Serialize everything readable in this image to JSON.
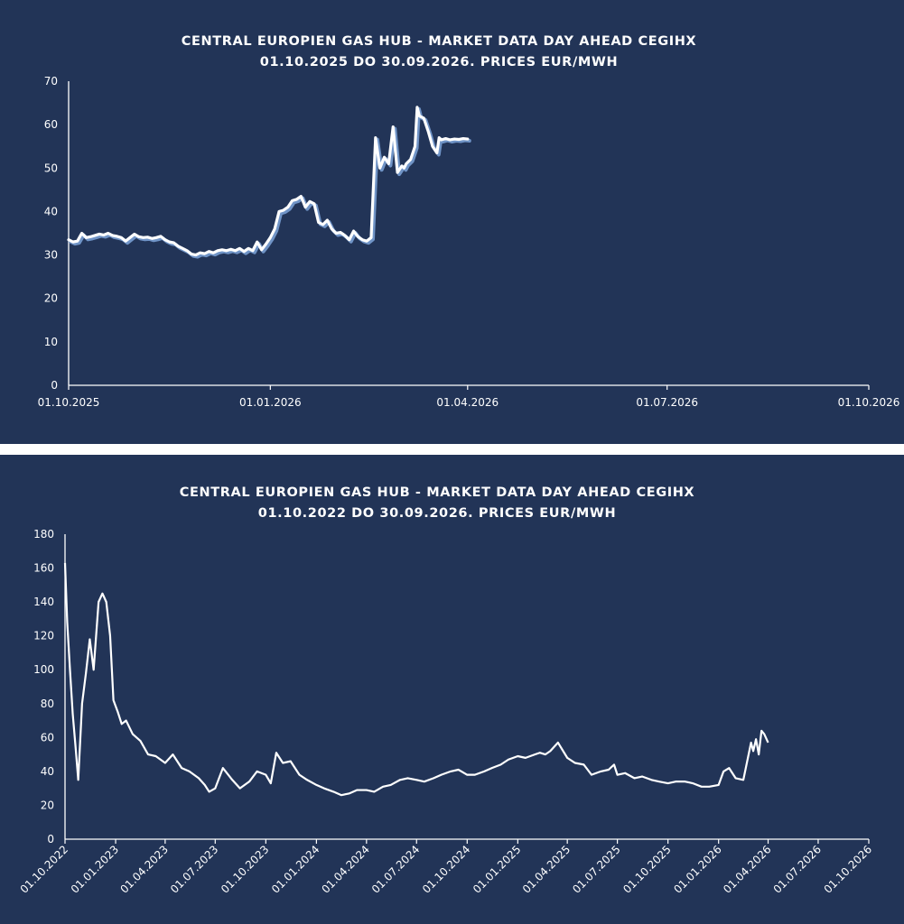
{
  "colors": {
    "background": "#223457",
    "separator": "#ffffff",
    "line": "#ffffff",
    "line_shadow": "#6f93c6"
  },
  "chart_data": [
    {
      "type": "line",
      "title": "CENTRAL EUROPIEN GAS HUB - MARKET DATA DAY AHEAD CEGIHX",
      "subtitle": "01.10.2025 DO 30.09.2026. PRICES EUR/MWH",
      "xlabel": "",
      "ylabel": "",
      "ylim": [
        0,
        70
      ],
      "yticks": [
        "0",
        "10",
        "20",
        "30",
        "40",
        "50",
        "60",
        "70"
      ],
      "xlim": [
        "01.10.2025",
        "01.10.2026"
      ],
      "xticks": [
        "01.10.2025",
        "01.01.2026",
        "01.04.2026",
        "01.07.2026",
        "01.10.2026"
      ],
      "grid": false,
      "legend": "none",
      "series": [
        {
          "x": [
            "2025-10-01",
            "2025-10-03",
            "2025-10-05",
            "2025-10-07",
            "2025-10-09",
            "2025-10-11",
            "2025-10-13",
            "2025-10-15",
            "2025-10-17",
            "2025-10-19",
            "2025-10-21",
            "2025-10-23",
            "2025-10-25",
            "2025-10-27",
            "2025-10-29",
            "2025-10-31",
            "2025-11-02",
            "2025-11-04",
            "2025-11-06",
            "2025-11-08",
            "2025-11-10",
            "2025-11-12",
            "2025-11-14",
            "2025-11-16",
            "2025-11-18",
            "2025-11-20",
            "2025-11-22",
            "2025-11-24",
            "2025-11-26",
            "2025-11-28",
            "2025-11-30",
            "2025-12-02",
            "2025-12-04",
            "2025-12-06",
            "2025-12-08",
            "2025-12-10",
            "2025-12-12",
            "2025-12-14",
            "2025-12-16",
            "2025-12-18",
            "2025-12-20",
            "2025-12-22",
            "2025-12-24",
            "2025-12-26",
            "2025-12-28",
            "2025-12-30",
            "2026-01-01",
            "2026-01-03",
            "2026-01-05",
            "2026-01-07",
            "2026-01-09",
            "2026-01-11",
            "2026-01-13",
            "2026-01-15",
            "2026-01-17",
            "2026-01-19",
            "2026-01-21",
            "2026-01-23",
            "2026-01-25",
            "2026-01-27",
            "2026-01-29",
            "2026-01-31",
            "2026-02-02",
            "2026-02-04",
            "2026-02-06",
            "2026-02-08",
            "2026-02-10",
            "2026-02-12",
            "2026-02-14",
            "2026-02-16",
            "2026-02-18",
            "2026-02-20",
            "2026-02-22",
            "2026-02-24",
            "2026-02-26",
            "2026-02-28",
            "2026-03-02",
            "2026-03-03",
            "2026-03-04",
            "2026-03-06",
            "2026-03-08",
            "2026-03-09",
            "2026-03-10",
            "2026-03-12",
            "2026-03-14",
            "2026-03-16",
            "2026-03-18",
            "2026-03-19",
            "2026-03-20",
            "2026-03-22",
            "2026-03-24",
            "2026-03-26",
            "2026-03-28",
            "2026-03-30",
            "2026-04-01"
          ],
          "y": [
            33.5,
            33.0,
            33.2,
            35.0,
            34.0,
            34.2,
            34.5,
            34.8,
            34.6,
            35.0,
            34.5,
            34.3,
            34.0,
            33.2,
            34.0,
            34.8,
            34.2,
            34.0,
            34.1,
            33.8,
            34.0,
            34.3,
            33.5,
            33.0,
            32.8,
            32.0,
            31.5,
            31.0,
            30.2,
            30.0,
            30.5,
            30.3,
            30.8,
            30.5,
            31.0,
            31.2,
            31.0,
            31.3,
            31.0,
            31.5,
            30.8,
            31.5,
            31.0,
            33.0,
            31.2,
            32.5,
            34.0,
            36.0,
            40.0,
            40.3,
            41.0,
            42.5,
            42.8,
            43.5,
            41.0,
            42.3,
            41.8,
            37.5,
            37.0,
            38.0,
            36.0,
            35.0,
            35.2,
            34.5,
            33.5,
            35.5,
            34.2,
            33.5,
            33.2,
            34.0,
            57.0,
            50.0,
            52.5,
            51.0,
            59.5,
            49.0,
            50.5,
            50.0,
            51.0,
            52.0,
            55.0,
            64.0,
            62.0,
            61.5,
            58.5,
            55.0,
            53.5,
            57.0,
            56.5,
            56.8,
            56.5,
            56.7,
            56.6,
            56.8,
            56.7
          ]
        }
      ]
    },
    {
      "type": "area",
      "title": "CENTRAL EUROPIEN GAS HUB - MARKET DATA DAY AHEAD CEGIHX",
      "subtitle": "01.10.2022 DO 30.09.2026. PRICES EUR/MWH",
      "xlabel": "",
      "ylabel": "",
      "ylim": [
        0,
        180
      ],
      "yticks": [
        "0",
        "20",
        "40",
        "60",
        "80",
        "100",
        "120",
        "140",
        "160",
        "180"
      ],
      "xlim": [
        "01.10.2022",
        "01.10.2026"
      ],
      "xticks": [
        "01.10.2022",
        "01.01.2023",
        "01.04.2023",
        "01.07.2023",
        "01.10.2023",
        "01.01.2024",
        "01.04.2024",
        "01.07.2024",
        "01.10.2024",
        "01.01.2025",
        "01.04.2025",
        "01.07.2025",
        "01.10.2025",
        "01.01.2026",
        "01.04.2026",
        "01.07.2026",
        "01.10.2026"
      ],
      "grid": false,
      "legend": "none",
      "series": [
        {
          "x": [
            "2022-10-01",
            "2022-10-05",
            "2022-10-10",
            "2022-10-15",
            "2022-10-20",
            "2022-10-25",
            "2022-11-01",
            "2022-11-08",
            "2022-11-15",
            "2022-11-22",
            "2022-12-01",
            "2022-12-08",
            "2022-12-15",
            "2022-12-22",
            "2022-12-28",
            "2023-01-05",
            "2023-01-12",
            "2023-01-20",
            "2023-02-01",
            "2023-02-15",
            "2023-03-01",
            "2023-03-15",
            "2023-04-01",
            "2023-04-15",
            "2023-05-01",
            "2023-05-15",
            "2023-06-01",
            "2023-06-12",
            "2023-06-20",
            "2023-07-01",
            "2023-07-15",
            "2023-08-01",
            "2023-08-15",
            "2023-09-01",
            "2023-09-15",
            "2023-10-01",
            "2023-10-10",
            "2023-10-20",
            "2023-11-01",
            "2023-11-15",
            "2023-12-01",
            "2023-12-15",
            "2024-01-01",
            "2024-01-15",
            "2024-02-01",
            "2024-02-15",
            "2024-03-01",
            "2024-03-15",
            "2024-04-01",
            "2024-04-15",
            "2024-05-01",
            "2024-05-15",
            "2024-06-01",
            "2024-06-15",
            "2024-07-01",
            "2024-07-15",
            "2024-08-01",
            "2024-08-15",
            "2024-09-01",
            "2024-09-15",
            "2024-10-01",
            "2024-10-15",
            "2024-11-01",
            "2024-11-15",
            "2024-12-01",
            "2024-12-15",
            "2025-01-01",
            "2025-01-15",
            "2025-02-01",
            "2025-02-10",
            "2025-02-20",
            "2025-03-01",
            "2025-03-15",
            "2025-04-01",
            "2025-04-15",
            "2025-05-01",
            "2025-05-15",
            "2025-06-01",
            "2025-06-15",
            "2025-06-25",
            "2025-07-01",
            "2025-07-15",
            "2025-08-01",
            "2025-08-15",
            "2025-09-01",
            "2025-09-15",
            "2025-10-01",
            "2025-10-15",
            "2025-11-01",
            "2025-11-15",
            "2025-12-01",
            "2025-12-15",
            "2026-01-01",
            "2026-01-10",
            "2026-01-20",
            "2026-02-01",
            "2026-02-15",
            "2026-03-01",
            "2026-03-05",
            "2026-03-10",
            "2026-03-15",
            "2026-03-20",
            "2026-03-25",
            "2026-04-01"
          ],
          "y": [
            163,
            128,
            100,
            74,
            55,
            35,
            80,
            98,
            118,
            100,
            140,
            145,
            140,
            120,
            82,
            75,
            68,
            70,
            62,
            58,
            50,
            49,
            45,
            50,
            42,
            40,
            36,
            32,
            28,
            30,
            42,
            35,
            30,
            34,
            40,
            38,
            33,
            51,
            45,
            46,
            38,
            35,
            32,
            30,
            28,
            26,
            27,
            29,
            29,
            28,
            31,
            32,
            35,
            36,
            35,
            34,
            36,
            38,
            40,
            41,
            38,
            38,
            40,
            42,
            44,
            47,
            49,
            48,
            50,
            51,
            50,
            52,
            57,
            48,
            45,
            44,
            38,
            40,
            41,
            44,
            38,
            39,
            36,
            37,
            35,
            34,
            33,
            34,
            34,
            33,
            31,
            31,
            32,
            40,
            42,
            36,
            35,
            57,
            52,
            59,
            50,
            64,
            62,
            57
          ]
        }
      ]
    }
  ]
}
